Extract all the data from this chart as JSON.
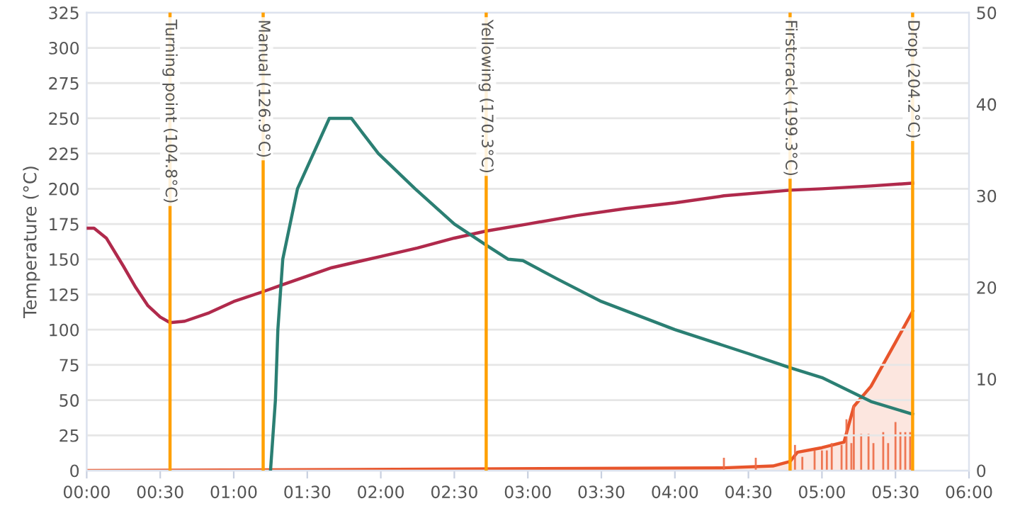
{
  "chart_data": {
    "type": "line",
    "ylabel": "Temperature (°C)",
    "xlim": [
      0,
      360
    ],
    "xticks": [
      {
        "value": 0,
        "label": "00:00"
      },
      {
        "value": 30,
        "label": "00:30"
      },
      {
        "value": 60,
        "label": "01:00"
      },
      {
        "value": 90,
        "label": "01:30"
      },
      {
        "value": 120,
        "label": "02:00"
      },
      {
        "value": 150,
        "label": "02:30"
      },
      {
        "value": 180,
        "label": "03:00"
      },
      {
        "value": 210,
        "label": "03:30"
      },
      {
        "value": 240,
        "label": "04:00"
      },
      {
        "value": 270,
        "label": "04:30"
      },
      {
        "value": 300,
        "label": "05:00"
      },
      {
        "value": 330,
        "label": "05:30"
      },
      {
        "value": 360,
        "label": "06:00"
      }
    ],
    "ylim": [
      0,
      325
    ],
    "yticks": [
      0,
      25,
      50,
      75,
      100,
      125,
      150,
      175,
      200,
      225,
      250,
      275,
      300,
      325
    ],
    "y2lim": [
      0,
      50
    ],
    "y2ticks": [
      0,
      10,
      20,
      30,
      40,
      50
    ],
    "grid": "y",
    "legend": false,
    "marker": "none",
    "line_style": "solid",
    "series": [
      {
        "color": "#b02a4c",
        "x": [
          0,
          3,
          8,
          15,
          20,
          25,
          30,
          34,
          40,
          50,
          60,
          72,
          80,
          90,
          100,
          110,
          120,
          135,
          150,
          163,
          180,
          200,
          220,
          240,
          260,
          287,
          300,
          320,
          337
        ],
        "values": [
          172,
          172,
          165,
          145,
          130,
          117,
          109,
          105,
          106,
          112,
          120,
          127,
          132,
          138,
          144,
          148,
          152,
          158,
          165,
          170,
          175,
          181,
          186,
          190,
          195,
          199,
          200,
          202,
          204
        ]
      },
      {
        "color": "#2b7f73",
        "x": [
          75,
          77,
          78,
          80,
          86,
          99,
          108,
          119,
          134,
          150,
          163,
          172,
          178,
          192,
          210,
          240,
          270,
          287,
          300,
          320,
          337
        ],
        "values": [
          0,
          50,
          100,
          150,
          200,
          250,
          250,
          225,
          200,
          175,
          160,
          150,
          149,
          136,
          120,
          100,
          83,
          73,
          66,
          49,
          40
        ]
      },
      {
        "type": "area",
        "axis": "y2",
        "color": "#e8552b",
        "x": [
          0,
          260,
          280,
          287,
          290,
          300,
          309,
          313,
          320,
          330,
          337
        ],
        "values": [
          0,
          0.3,
          0.5,
          1,
          2,
          2.5,
          3.1,
          7,
          9.2,
          14,
          17.4
        ]
      },
      {
        "type": "bar",
        "axis": "y2",
        "color": "#ec6a45",
        "x": [
          260,
          273,
          289,
          292,
          297,
          300,
          302,
          304,
          308,
          310,
          312,
          313,
          316,
          319,
          321,
          325,
          327,
          330,
          332,
          334,
          336
        ],
        "values": [
          1.4,
          1.4,
          2.8,
          1.5,
          2.2,
          2.2,
          2.2,
          3,
          2.8,
          5.6,
          3,
          7.1,
          4,
          4,
          3,
          4.2,
          3,
          5.3,
          4.2,
          4.2,
          4.2
        ]
      }
    ],
    "ref_lines": [
      {
        "axis": "x",
        "value": 34,
        "label": "Turning point (104.8°C)",
        "color": "#ffa000"
      },
      {
        "axis": "x",
        "value": 72,
        "label": "Manual (126.9°C)",
        "color": "#ffa000"
      },
      {
        "axis": "x",
        "value": 163,
        "label": "Yellowing (170.3°C)",
        "color": "#ffa000"
      },
      {
        "axis": "x",
        "value": 287,
        "label": "Firstcrack (199.3°C)",
        "color": "#ffa000"
      },
      {
        "axis": "x",
        "value": 337,
        "label": "Drop (204.2°C)",
        "color": "#ffa000"
      }
    ]
  }
}
